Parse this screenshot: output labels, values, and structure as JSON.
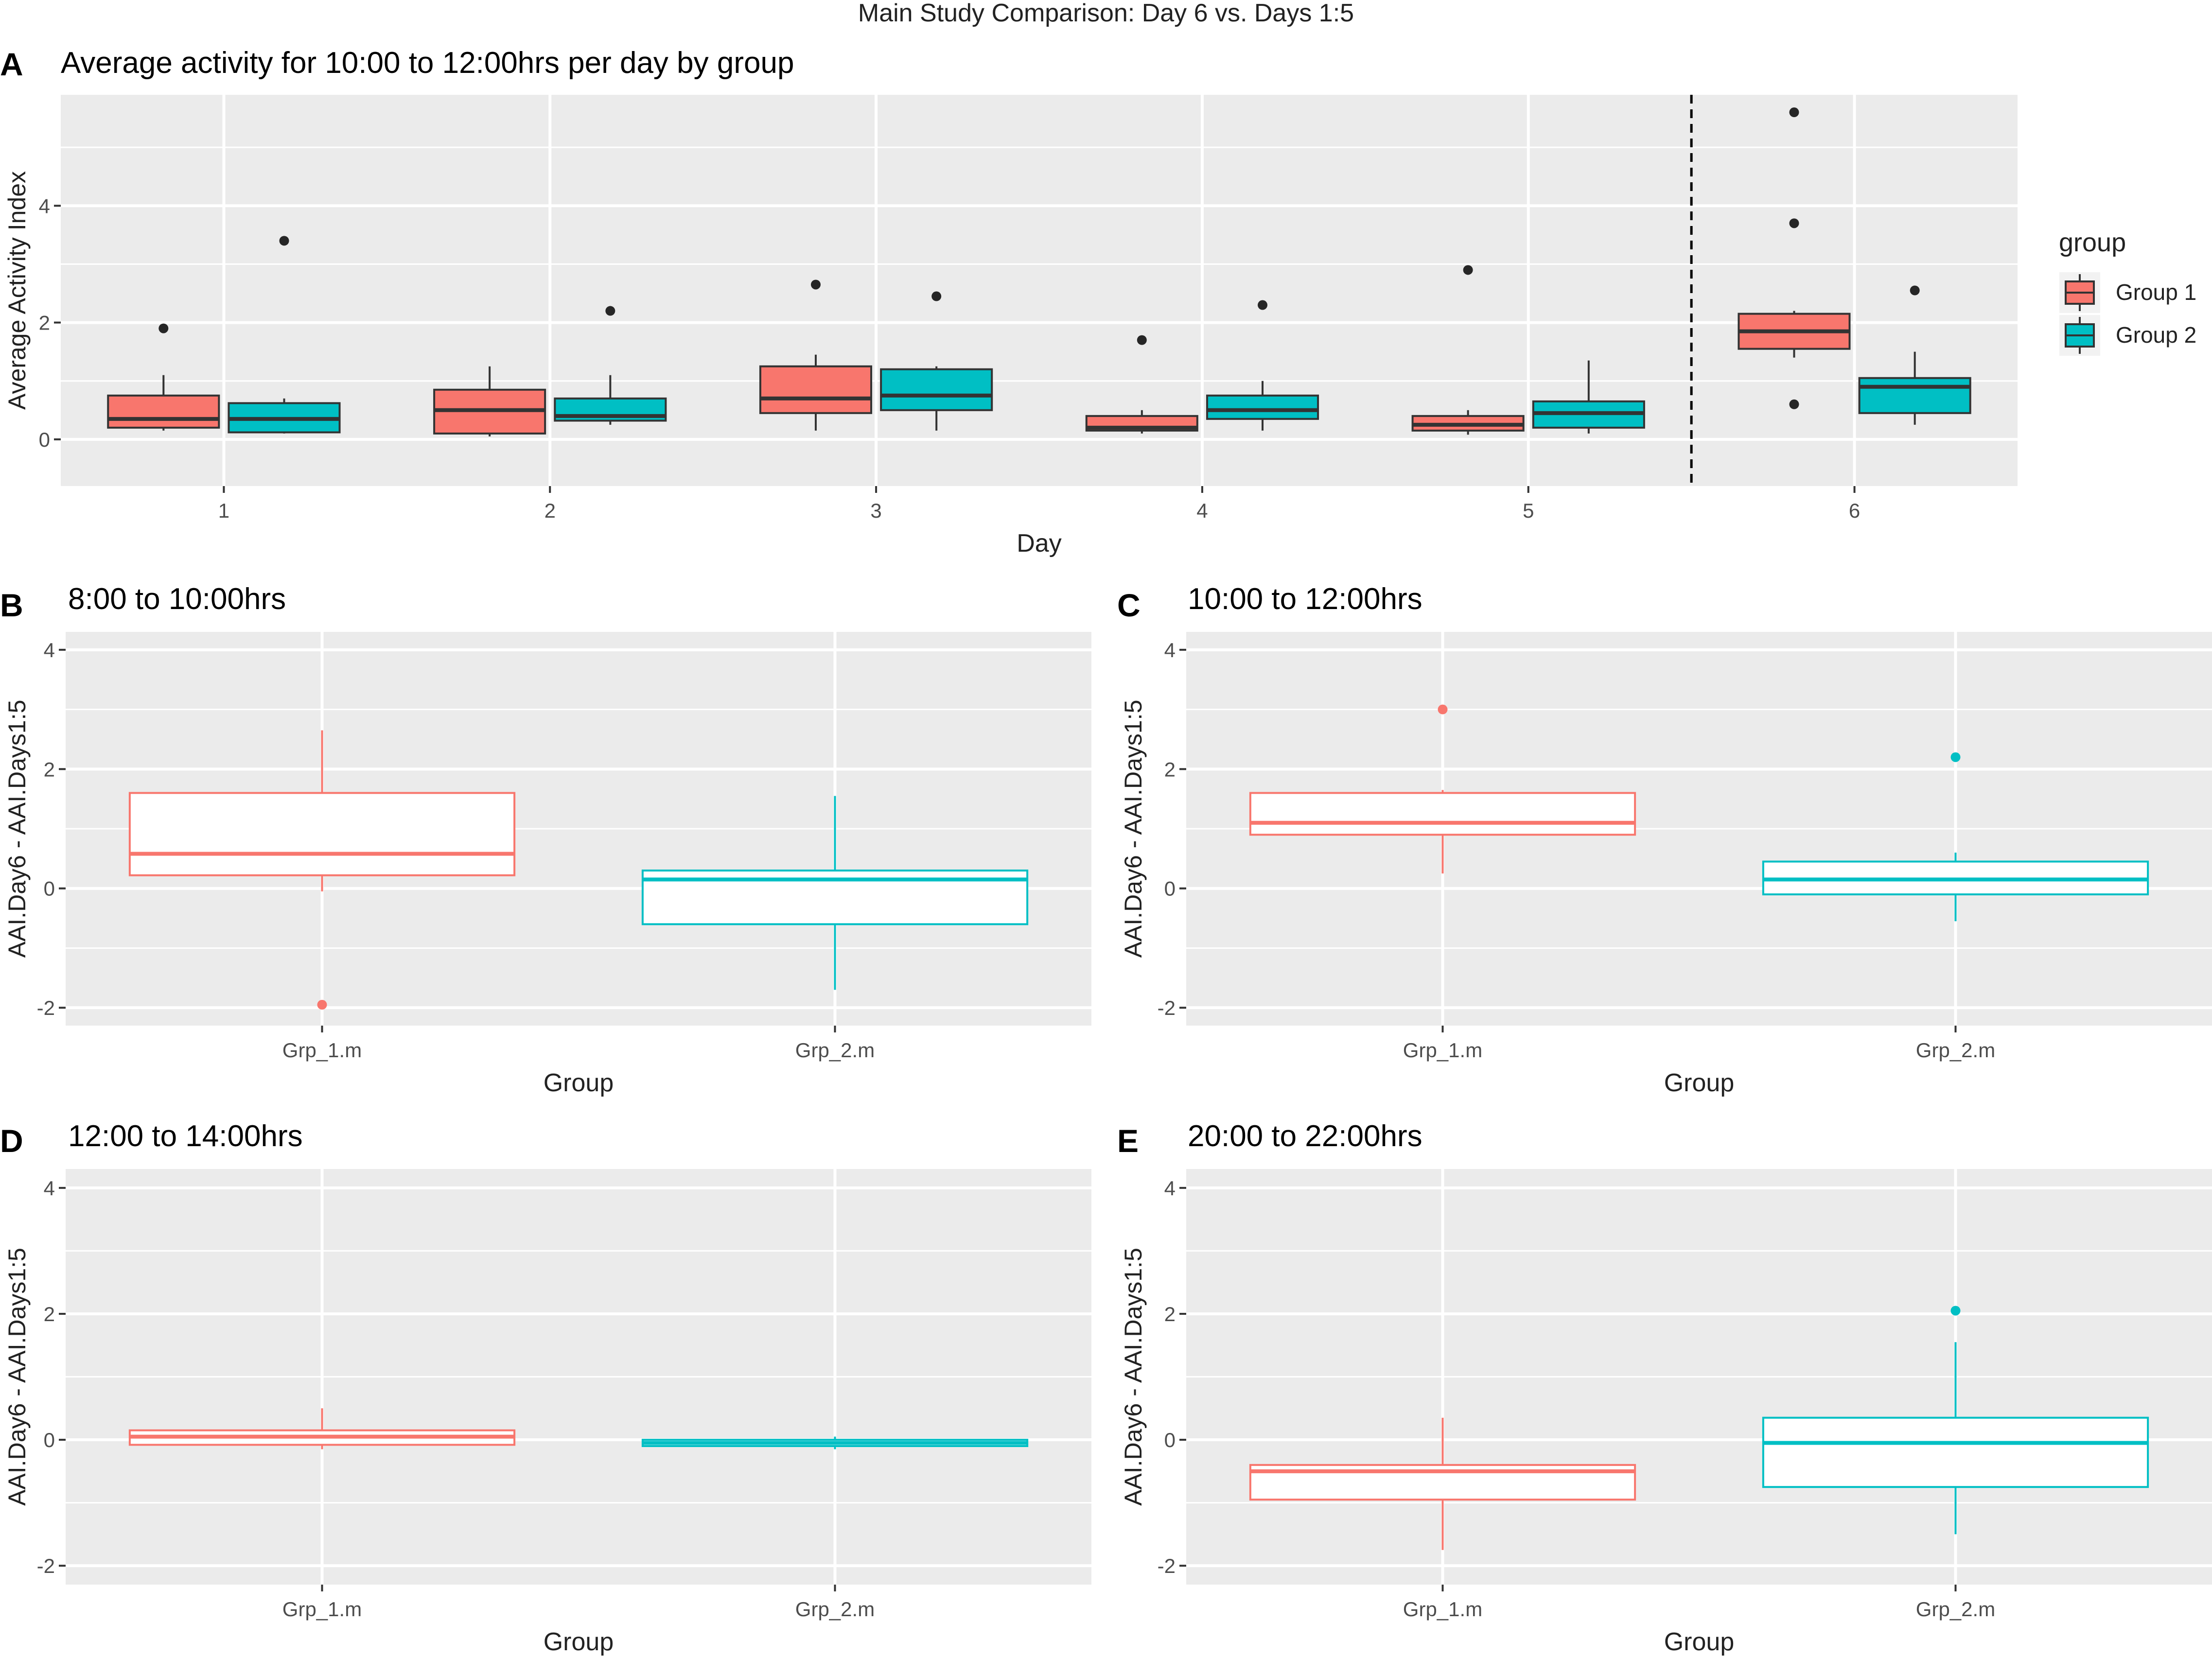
{
  "figure_title": "Main Study Comparison: Day 6 vs. Days 1:5",
  "colors": {
    "group1": "#F8766D",
    "group2": "#00BFC4",
    "panel_bg": "#EBEBEB",
    "grid": "#FFFFFF",
    "text": "#222222",
    "tick_text": "#4D4D4D",
    "outlier": "#262626"
  },
  "chart_data": [
    {
      "id": "A",
      "type": "box",
      "panel_label": "A",
      "title": "Average activity for 10:00 to 12:00hrs per day by group",
      "xlabel": "Day",
      "ylabel": "Average Activity Index",
      "categories": [
        "1",
        "2",
        "3",
        "4",
        "5",
        "6"
      ],
      "ylim": [
        -0.8,
        5.9
      ],
      "yticks": [
        0,
        2,
        4
      ],
      "filled": true,
      "divider_after_category": 5,
      "legend": {
        "title": "group",
        "position": "right",
        "entries": [
          "Group 1",
          "Group 2"
        ]
      },
      "series": [
        {
          "name": "Group 1",
          "boxes": [
            {
              "category": "1",
              "min": 0.15,
              "q1": 0.2,
              "median": 0.35,
              "q3": 0.75,
              "max": 1.1,
              "outliers": [
                1.9
              ]
            },
            {
              "category": "2",
              "min": 0.05,
              "q1": 0.1,
              "median": 0.5,
              "q3": 0.85,
              "max": 1.25,
              "outliers": []
            },
            {
              "category": "3",
              "min": 0.15,
              "q1": 0.45,
              "median": 0.7,
              "q3": 1.25,
              "max": 1.45,
              "outliers": [
                2.65
              ]
            },
            {
              "category": "4",
              "min": 0.1,
              "q1": 0.15,
              "median": 0.2,
              "q3": 0.4,
              "max": 0.5,
              "outliers": [
                1.7
              ]
            },
            {
              "category": "5",
              "min": 0.08,
              "q1": 0.15,
              "median": 0.25,
              "q3": 0.4,
              "max": 0.5,
              "outliers": [
                2.9
              ]
            },
            {
              "category": "6",
              "min": 1.4,
              "q1": 1.55,
              "median": 1.85,
              "q3": 2.15,
              "max": 2.2,
              "outliers": [
                5.6,
                3.7,
                0.6
              ]
            }
          ]
        },
        {
          "name": "Group 2",
          "boxes": [
            {
              "category": "1",
              "min": 0.1,
              "q1": 0.12,
              "median": 0.35,
              "q3": 0.62,
              "max": 0.7,
              "outliers": [
                3.4
              ]
            },
            {
              "category": "2",
              "min": 0.25,
              "q1": 0.32,
              "median": 0.4,
              "q3": 0.7,
              "max": 1.1,
              "outliers": [
                2.2
              ]
            },
            {
              "category": "3",
              "min": 0.15,
              "q1": 0.5,
              "median": 0.75,
              "q3": 1.2,
              "max": 1.25,
              "outliers": [
                2.45
              ]
            },
            {
              "category": "4",
              "min": 0.15,
              "q1": 0.35,
              "median": 0.5,
              "q3": 0.75,
              "max": 1.0,
              "outliers": [
                2.3
              ]
            },
            {
              "category": "5",
              "min": 0.1,
              "q1": 0.2,
              "median": 0.45,
              "q3": 0.65,
              "max": 1.35,
              "outliers": []
            },
            {
              "category": "6",
              "min": 0.25,
              "q1": 0.45,
              "median": 0.9,
              "q3": 1.05,
              "max": 1.5,
              "outliers": [
                2.55
              ]
            }
          ]
        }
      ]
    },
    {
      "id": "B",
      "type": "box",
      "panel_label": "B",
      "title": "8:00 to 10:00hrs",
      "xlabel": "Group",
      "ylabel": "AAI.Day6 - AAI.Days1:5",
      "categories": [
        "Grp_1.m",
        "Grp_2.m"
      ],
      "ylim": [
        -2.3,
        4.3
      ],
      "yticks": [
        -2,
        0,
        2,
        4
      ],
      "filled": false,
      "boxes": [
        {
          "category": "Grp_1.m",
          "series": "Group 1",
          "min": -0.05,
          "q1": 0.22,
          "median": 0.58,
          "q3": 1.6,
          "max": 2.65,
          "outliers": [
            -1.95
          ]
        },
        {
          "category": "Grp_2.m",
          "series": "Group 2",
          "min": -1.7,
          "q1": -0.6,
          "median": 0.15,
          "q3": 0.3,
          "max": 1.55,
          "outliers": []
        }
      ]
    },
    {
      "id": "C",
      "type": "box",
      "panel_label": "C",
      "title": "10:00 to 12:00hrs",
      "xlabel": "Group",
      "ylabel": "AAI.Day6 - AAI.Days1:5",
      "categories": [
        "Grp_1.m",
        "Grp_2.m"
      ],
      "ylim": [
        -2.3,
        4.3
      ],
      "yticks": [
        -2,
        0,
        2,
        4
      ],
      "filled": false,
      "boxes": [
        {
          "category": "Grp_1.m",
          "series": "Group 1",
          "min": 0.25,
          "q1": 0.9,
          "median": 1.1,
          "q3": 1.6,
          "max": 1.65,
          "outliers": [
            3.0
          ]
        },
        {
          "category": "Grp_2.m",
          "series": "Group 2",
          "min": -0.55,
          "q1": -0.1,
          "median": 0.15,
          "q3": 0.45,
          "max": 0.6,
          "outliers": [
            2.2
          ]
        }
      ]
    },
    {
      "id": "D",
      "type": "box",
      "panel_label": "D",
      "title": "12:00 to 14:00hrs",
      "xlabel": "Group",
      "ylabel": "AAI.Day6 - AAI.Days1:5",
      "categories": [
        "Grp_1.m",
        "Grp_2.m"
      ],
      "ylim": [
        -2.3,
        4.3
      ],
      "yticks": [
        -2,
        0,
        2,
        4
      ],
      "filled": false,
      "boxes": [
        {
          "category": "Grp_1.m",
          "series": "Group 1",
          "min": -0.15,
          "q1": -0.08,
          "median": 0.05,
          "q3": 0.15,
          "max": 0.5,
          "outliers": []
        },
        {
          "category": "Grp_2.m",
          "series": "Group 2",
          "min": -0.15,
          "q1": -0.1,
          "median": -0.05,
          "q3": 0.0,
          "max": 0.05,
          "outliers": []
        }
      ]
    },
    {
      "id": "E",
      "type": "box",
      "panel_label": "E",
      "title": "20:00 to 22:00hrs",
      "xlabel": "Group",
      "ylabel": "AAI.Day6 - AAI.Days1:5",
      "categories": [
        "Grp_1.m",
        "Grp_2.m"
      ],
      "ylim": [
        -2.3,
        4.3
      ],
      "yticks": [
        -2,
        0,
        2,
        4
      ],
      "filled": false,
      "boxes": [
        {
          "category": "Grp_1.m",
          "series": "Group 1",
          "min": -1.75,
          "q1": -0.95,
          "median": -0.5,
          "q3": -0.4,
          "max": 0.35,
          "outliers": []
        },
        {
          "category": "Grp_2.m",
          "series": "Group 2",
          "min": -1.5,
          "q1": -0.75,
          "median": -0.05,
          "q3": 0.35,
          "max": 1.55,
          "outliers": [
            2.05
          ]
        }
      ]
    }
  ]
}
